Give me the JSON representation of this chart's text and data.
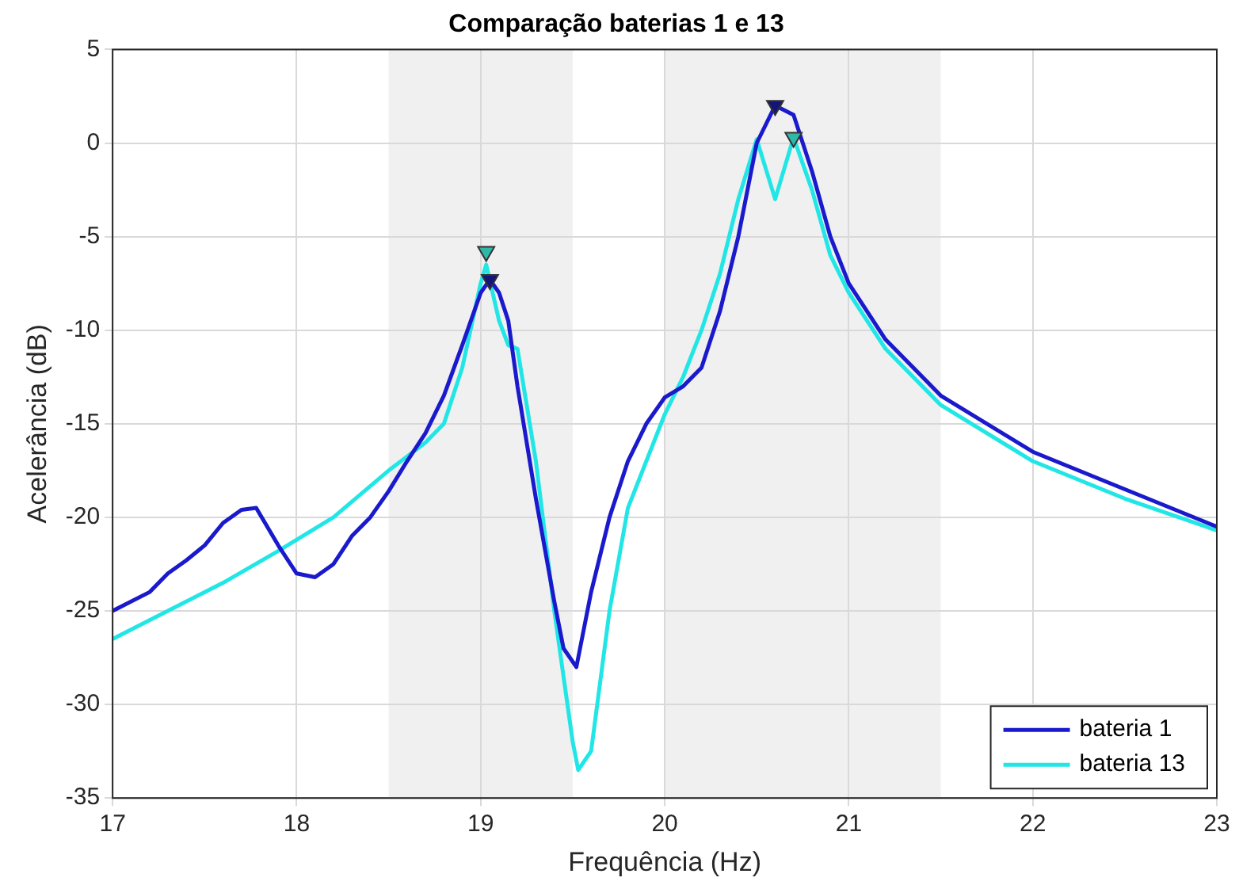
{
  "chart_data": {
    "type": "line",
    "title": "Comparação baterias 1 e 13",
    "xlabel": "Frequência (Hz)",
    "ylabel": "Acelerância (dB)",
    "xlim": [
      17,
      23
    ],
    "xticks": [
      17,
      18,
      19,
      20,
      21,
      22,
      23
    ],
    "ylim": [
      -35,
      5
    ],
    "yticks": [
      -35,
      -30,
      -25,
      -20,
      -15,
      -10,
      -5,
      0,
      5
    ],
    "grid": true,
    "legend": "bottom right",
    "marker": "none",
    "line_style": "solid",
    "bands": [
      {
        "axis": "x",
        "from": 18.5,
        "to": 19.5,
        "color": "#f0f0f0"
      },
      {
        "axis": "x",
        "from": 20,
        "to": 21.5,
        "color": "#f0f0f0"
      }
    ],
    "series": [
      {
        "name": "bateria 1",
        "color": "#1a1acc",
        "x": [
          17,
          17.2,
          17.3,
          17.4,
          17.5,
          17.6,
          17.7,
          17.78,
          17.9,
          18,
          18.1,
          18.2,
          18.3,
          18.4,
          18.5,
          18.6,
          18.7,
          18.8,
          18.9,
          19,
          19.05,
          19.1,
          19.15,
          19.2,
          19.3,
          19.4,
          19.45,
          19.52,
          19.6,
          19.7,
          19.8,
          19.9,
          20,
          20.1,
          20.2,
          20.3,
          20.4,
          20.5,
          20.6,
          20.7,
          20.8,
          20.9,
          21,
          21.2,
          21.5,
          22,
          22.5,
          23
        ],
        "values": [
          -25,
          -24,
          -23,
          -22.3,
          -21.5,
          -20.3,
          -19.6,
          -19.5,
          -21.5,
          -23,
          -23.2,
          -22.5,
          -21,
          -20,
          -18.6,
          -17,
          -15.5,
          -13.5,
          -10.8,
          -8,
          -7.3,
          -8,
          -9.5,
          -13,
          -19,
          -24.5,
          -27,
          -28,
          -24,
          -20,
          -17,
          -15,
          -13.6,
          -13,
          -12,
          -9,
          -5,
          0,
          2,
          1.5,
          -1.5,
          -5,
          -7.5,
          -10.5,
          -13.5,
          -16.5,
          -18.5,
          -20.5
        ]
      },
      {
        "name": "bateria 13",
        "color": "#22e6e6",
        "x": [
          17,
          17.3,
          17.6,
          17.9,
          18.2,
          18.5,
          18.7,
          18.8,
          18.9,
          19,
          19.03,
          19.1,
          19.15,
          19.2,
          19.3,
          19.4,
          19.5,
          19.53,
          19.6,
          19.7,
          19.8,
          19.9,
          20,
          20.1,
          20.2,
          20.3,
          20.4,
          20.5,
          20.6,
          20.7,
          20.8,
          20.9,
          21,
          21.2,
          21.5,
          22,
          22.5,
          23
        ],
        "values": [
          -26.5,
          -25,
          -23.5,
          -21.8,
          -20,
          -17.5,
          -16,
          -15,
          -12,
          -7.5,
          -6.5,
          -9.5,
          -10.8,
          -11,
          -17,
          -25,
          -32,
          -33.5,
          -32.5,
          -25,
          -19.5,
          -17,
          -14.5,
          -12.5,
          -10,
          -7,
          -3,
          0.2,
          -3,
          0.3,
          -2.5,
          -6,
          -8,
          -11,
          -14,
          -17,
          -19,
          -20.7
        ]
      },
      {
        "type": "scatter",
        "marker": "triangle",
        "color": "#14147a",
        "x": [
          19.05,
          20.6
        ],
        "values": [
          -7.3,
          2
        ]
      },
      {
        "type": "scatter",
        "marker": "triangle",
        "color": "#2fb8a8",
        "x": [
          19.03,
          20.7
        ],
        "values": [
          -5.8,
          0.3
        ]
      }
    ]
  }
}
